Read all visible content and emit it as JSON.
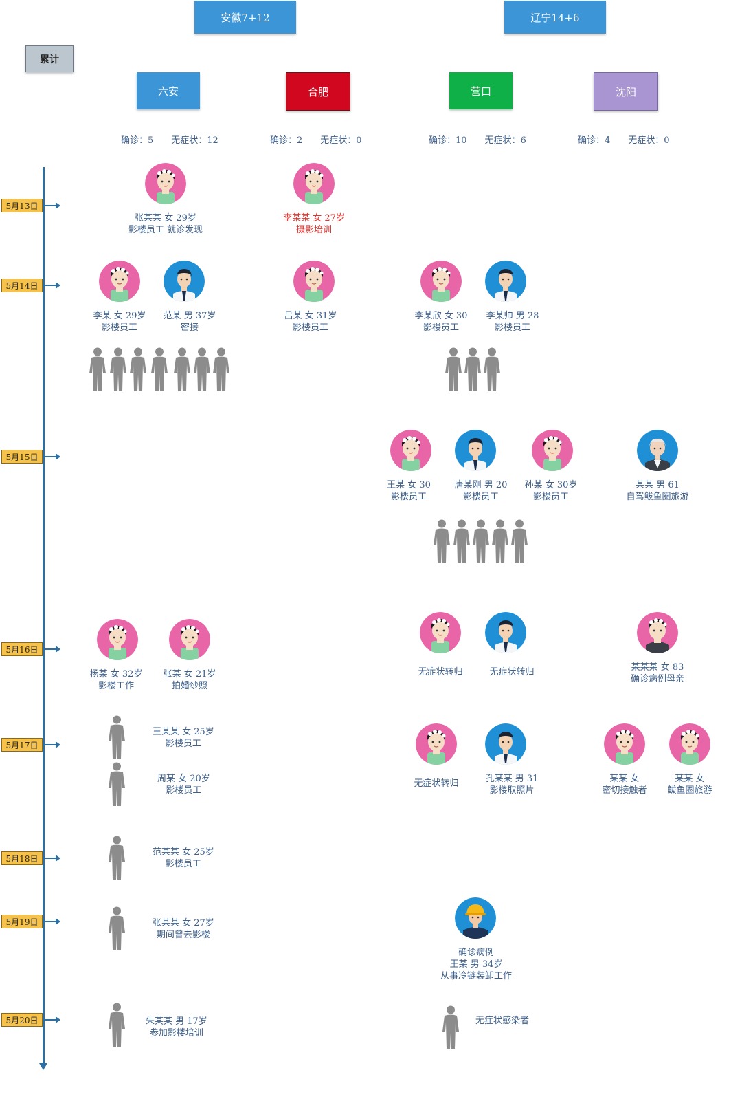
{
  "regions": {
    "anhui": "安徽7+12",
    "liaoning": "辽宁14+6",
    "cumulative": "累计"
  },
  "cities": [
    {
      "name": "六安",
      "color": "#3b95d6",
      "confirmed": "确诊：5",
      "asymptomatic": "无症状：12"
    },
    {
      "name": "合肥",
      "color": "#d0071e",
      "confirmed": "确诊：2",
      "asymptomatic": "无症状：0"
    },
    {
      "name": "营口",
      "color": "#10b048",
      "confirmed": "确诊：10",
      "asymptomatic": "无症状：6"
    },
    {
      "name": "沈阳",
      "color": "#a995d2",
      "confirmed": "确诊：4",
      "asymptomatic": "无症状：0"
    }
  ],
  "dates": [
    "5月13日",
    "5月14日",
    "5月15日",
    "5月16日",
    "5月17日",
    "5月18日",
    "5月19日",
    "5月20日"
  ],
  "cases": {
    "c1": [
      "张某某 女 29岁",
      "影楼员工 就诊发现"
    ],
    "c2": [
      "李某某 女 27岁",
      "摄影培训"
    ],
    "c3": [
      "李某 女 29岁",
      "影楼员工"
    ],
    "c4": [
      "范某 男 37岁",
      "密接"
    ],
    "c5": [
      "吕某 女 31岁",
      "影楼员工"
    ],
    "c6": [
      "李某欣 女 30",
      "影楼员工"
    ],
    "c7": [
      "李某帅 男 28",
      "影楼员工"
    ],
    "c8": [
      "王某 女 30",
      "影楼员工"
    ],
    "c9": [
      "唐某刚 男 20",
      "影楼员工"
    ],
    "c10": [
      "孙某 女 30岁",
      "影楼员工"
    ],
    "c11": [
      "某某 男 61",
      "自驾鲅鱼圈旅游"
    ],
    "c12": [
      "杨某 女 32岁",
      "影楼工作"
    ],
    "c13": [
      "张某 女 21岁",
      "拍婚纱照"
    ],
    "c14": [
      "无症状转归"
    ],
    "c15": [
      "无症状转归"
    ],
    "c16": [
      "某某某 女 83",
      "确诊病例母亲"
    ],
    "c17": [
      "王某某 女 25岁",
      "影楼员工"
    ],
    "c18": [
      "周某 女 20岁",
      "影楼员工"
    ],
    "c19": [
      "无症状转归"
    ],
    "c20": [
      "孔某某 男 31",
      "影楼取照片"
    ],
    "c21": [
      "某某 女",
      "密切接触者"
    ],
    "c22": [
      "某某 女",
      "鲅鱼圈旅游"
    ],
    "c23": [
      "范某某 女 25岁",
      "影楼员工"
    ],
    "c24": [
      "张某某 女 27岁",
      "期间曾去影楼"
    ],
    "c25": [
      "确诊病例",
      "王某 男 34岁",
      "从事冷链装卸工作"
    ],
    "c26": [
      "朱某某 男 17岁",
      "参加影楼培训"
    ],
    "c27": [
      "无症状感染者"
    ]
  }
}
